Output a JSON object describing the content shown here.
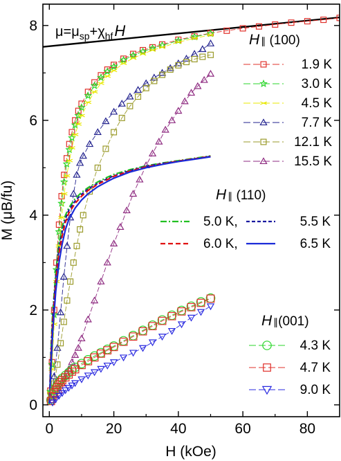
{
  "chart_data": {
    "type": "scatter",
    "xlabel": "H (kOe)",
    "ylabel": "M (μB/fu)",
    "xlim": [
      -2,
      90
    ],
    "ylim": [
      -0.25,
      8.45
    ],
    "xticks": [
      "0",
      "20",
      "40",
      "60",
      "80"
    ],
    "xtick_values": [
      0,
      20,
      40,
      60,
      80
    ],
    "yticks": [
      "0",
      "2",
      "4",
      "6",
      "8"
    ],
    "ytick_values": [
      0,
      2,
      4,
      6,
      8
    ],
    "annotation": {
      "prefix": "μ=μ",
      "sub1": "sp",
      "mid": "+χ",
      "sub2": "hf",
      "suffix": "H"
    },
    "fit_line": {
      "name": "μ=μsp+χhf H",
      "x": [
        -2,
        90
      ],
      "y": [
        7.55,
        8.17
      ],
      "color": "#000000"
    },
    "groups": [
      {
        "header_h": "H",
        "header_sym": "∥",
        "header_dir": " (100)",
        "series": [
          {
            "name": "1.9 K",
            "marker": "square",
            "color": "#e0302a",
            "dash": "long",
            "x": [
              0.3,
              0.8,
              1.5,
              2.2,
              3,
              3.8,
              4.6,
              5.4,
              6.2,
              7,
              8,
              9,
              10,
              12,
              14,
              16,
              18,
              20,
              23,
              26,
              29,
              32,
              35,
              40,
              45,
              50,
              55,
              60,
              65,
              70,
              75,
              80,
              85,
              90
            ],
            "y": [
              0.3,
              0.9,
              2.0,
              3.0,
              3.8,
              4.4,
              4.85,
              5.2,
              5.5,
              5.75,
              6.0,
              6.2,
              6.35,
              6.6,
              6.8,
              6.95,
              7.07,
              7.17,
              7.3,
              7.4,
              7.48,
              7.54,
              7.6,
              7.7,
              7.77,
              7.84,
              7.89,
              7.94,
              7.98,
              8.02,
              8.06,
              8.09,
              8.12,
              8.16
            ]
          },
          {
            "name": "3.0 K",
            "marker": "star",
            "color": "#2ad62a",
            "dash": "long",
            "x": [
              0.3,
              0.8,
              1.5,
              2.2,
              3,
              3.8,
              4.6,
              5.4,
              6.2,
              7,
              8,
              9,
              10,
              12,
              14,
              16,
              18,
              20,
              23,
              26,
              29,
              32,
              35,
              40,
              45,
              50
            ],
            "y": [
              0.28,
              0.85,
              1.9,
              2.85,
              3.65,
              4.25,
              4.7,
              5.08,
              5.38,
              5.63,
              5.9,
              6.1,
              6.27,
              6.52,
              6.73,
              6.9,
              7.03,
              7.13,
              7.27,
              7.37,
              7.45,
              7.52,
              7.58,
              7.68,
              7.76,
              7.83
            ]
          },
          {
            "name": "4.5 K",
            "marker": "cross",
            "color": "#e8e800",
            "dash": "long",
            "x": [
              0.3,
              0.8,
              1.5,
              2.2,
              3,
              3.8,
              4.6,
              5.4,
              6.2,
              7,
              8,
              9,
              10,
              12,
              14,
              16,
              18,
              20,
              23,
              26,
              29,
              32,
              35,
              40,
              45,
              50
            ],
            "y": [
              0.25,
              0.75,
              1.7,
              2.6,
              3.35,
              3.95,
              4.45,
              4.83,
              5.15,
              5.42,
              5.7,
              5.92,
              6.1,
              6.38,
              6.6,
              6.78,
              6.93,
              7.05,
              7.2,
              7.31,
              7.4,
              7.48,
              7.54,
              7.65,
              7.73,
              7.8
            ]
          },
          {
            "name": "7.7 K",
            "marker": "triangle-up",
            "color": "#22228e",
            "dash": "long",
            "x": [
              0.5,
              1.5,
              2.5,
              3.5,
              4.5,
              5.5,
              6.5,
              7.5,
              8.5,
              9.5,
              10.5,
              12.5,
              15,
              17.5,
              20,
              22.5,
              25,
              27.5,
              30,
              32.5,
              35,
              37.5,
              40,
              42.5,
              45,
              47.5,
              50
            ],
            "y": [
              0.15,
              0.6,
              1.2,
              1.95,
              2.7,
              3.35,
              3.95,
              4.45,
              4.85,
              5.1,
              5.25,
              5.5,
              5.75,
              5.98,
              6.18,
              6.35,
              6.5,
              6.64,
              6.78,
              6.9,
              7.0,
              7.1,
              7.2,
              7.3,
              7.4,
              7.5,
              7.62
            ]
          },
          {
            "name": "12.1 K",
            "marker": "square",
            "color": "#9a9a2a",
            "dash": "long",
            "x": [
              0.5,
              1.5,
              2.5,
              3.5,
              4.5,
              5.5,
              6.5,
              7.5,
              8.5,
              9.5,
              10.5,
              12.5,
              15,
              17.5,
              20,
              22.5,
              25,
              27.5,
              30,
              32.5,
              35,
              37.5,
              40,
              42.5,
              45,
              47.5,
              50
            ],
            "y": [
              0.1,
              0.45,
              0.85,
              1.3,
              1.75,
              2.2,
              2.6,
              3.0,
              3.35,
              3.7,
              4.0,
              4.5,
              5.0,
              5.4,
              5.75,
              6.05,
              6.3,
              6.5,
              6.68,
              6.83,
              6.96,
              7.07,
              7.16,
              7.23,
              7.29,
              7.34,
              7.38
            ]
          },
          {
            "name": "15.5 K",
            "marker": "triangle-up",
            "color": "#8e2a80",
            "dash": "long",
            "x": [
              1,
              2,
              3,
              4,
              5,
              6,
              7,
              8,
              9,
              10,
              12,
              14,
              16,
              18,
              20,
              22,
              24,
              26,
              28,
              30,
              32,
              34,
              36,
              38,
              40,
              42,
              44,
              46,
              48,
              50
            ],
            "y": [
              0.1,
              0.2,
              0.3,
              0.45,
              0.6,
              0.75,
              0.9,
              1.05,
              1.2,
              1.4,
              1.8,
              2.2,
              2.6,
              3.0,
              3.4,
              3.75,
              4.1,
              4.45,
              4.75,
              5.05,
              5.3,
              5.55,
              5.8,
              6.0,
              6.2,
              6.4,
              6.58,
              6.72,
              6.85,
              6.98
            ]
          }
        ]
      },
      {
        "header_h": "H",
        "header_sym": "∥",
        "header_dir": " (110)",
        "series": [
          {
            "name": "5.0 K,",
            "style": "line",
            "color": "#22c022",
            "dash": "dashdot",
            "x": [
              0,
              0.5,
              1,
              2,
              3,
              4,
              5,
              6,
              8,
              10,
              12,
              15,
              18,
              20,
              25,
              30,
              35,
              40,
              45,
              50
            ],
            "y": [
              0,
              1.2,
              1.9,
              2.8,
              3.4,
              3.75,
              4.0,
              4.15,
              4.35,
              4.48,
              4.58,
              4.7,
              4.8,
              4.86,
              4.96,
              5.04,
              5.1,
              5.15,
              5.2,
              5.25
            ]
          },
          {
            "name": "5.5 K",
            "style": "line",
            "color": "#1a1aa0",
            "dash": "short",
            "x": [
              0,
              0.5,
              1,
              2,
              3,
              4,
              5,
              6,
              8,
              10,
              12,
              15,
              18,
              20,
              25,
              30,
              35,
              40,
              45,
              50
            ],
            "y": [
              0,
              1.1,
              1.8,
              2.7,
              3.3,
              3.65,
              3.92,
              4.1,
              4.3,
              4.44,
              4.55,
              4.67,
              4.77,
              4.83,
              4.94,
              5.03,
              5.09,
              5.14,
              5.19,
              5.24
            ]
          },
          {
            "name": "6.0 K,",
            "style": "line",
            "color": "#e01010",
            "dash": "medium",
            "x": [
              0,
              0.5,
              1,
              2,
              3,
              4,
              5,
              6,
              8,
              10,
              12,
              15,
              18,
              20,
              25,
              30,
              35,
              40,
              45,
              50
            ],
            "y": [
              0,
              1.0,
              1.7,
              2.6,
              3.2,
              3.57,
              3.85,
              4.04,
              4.25,
              4.4,
              4.52,
              4.65,
              4.75,
              4.82,
              4.93,
              5.02,
              5.08,
              5.14,
              5.19,
              5.24
            ]
          },
          {
            "name": "6.5 K",
            "style": "line",
            "color": "#1a2ad8",
            "dash": "solid",
            "x": [
              0,
              0.5,
              1,
              2,
              3,
              4,
              5,
              6,
              8,
              10,
              12,
              15,
              18,
              20,
              25,
              30,
              35,
              40,
              45,
              50
            ],
            "y": [
              0,
              0.8,
              1.5,
              2.4,
              3.0,
              3.4,
              3.7,
              3.9,
              4.15,
              4.32,
              4.45,
              4.6,
              4.71,
              4.78,
              4.91,
              5.0,
              5.07,
              5.13,
              5.18,
              5.23
            ]
          }
        ]
      },
      {
        "header_h": "H",
        "header_sym": "∥",
        "header_dir": "(001)",
        "series": [
          {
            "name": "4.3 K",
            "marker": "circle",
            "color": "#2ad62a",
            "dash": "long",
            "big": true,
            "x": [
              0.5,
              1,
              1.5,
              2,
              2.5,
              3,
              3.5,
              4,
              5,
              6,
              7,
              8,
              10,
              12,
              14,
              16,
              18,
              20,
              23,
              26,
              29,
              32,
              35,
              38,
              41,
              44,
              47,
              50
            ],
            "y": [
              0.1,
              0.22,
              0.3,
              0.36,
              0.42,
              0.47,
              0.52,
              0.56,
              0.62,
              0.68,
              0.74,
              0.79,
              0.87,
              0.95,
              1.03,
              1.1,
              1.17,
              1.24,
              1.35,
              1.46,
              1.57,
              1.68,
              1.79,
              1.89,
              1.99,
              2.08,
              2.17,
              2.25
            ]
          },
          {
            "name": "4.7 K",
            "marker": "square",
            "color": "#e0302a",
            "dash": "long",
            "big": true,
            "x": [
              0.5,
              1,
              1.5,
              2,
              2.5,
              3,
              3.5,
              4,
              5,
              6,
              7,
              8,
              10,
              12,
              14,
              16,
              18,
              20,
              23,
              26,
              29,
              32,
              35,
              38,
              41,
              44,
              47,
              50
            ],
            "y": [
              0.08,
              0.18,
              0.26,
              0.32,
              0.38,
              0.43,
              0.48,
              0.52,
              0.58,
              0.64,
              0.7,
              0.75,
              0.84,
              0.92,
              1.0,
              1.08,
              1.15,
              1.22,
              1.33,
              1.44,
              1.55,
              1.66,
              1.77,
              1.87,
              1.97,
              2.06,
              2.15,
              2.24
            ]
          },
          {
            "name": "9.0 K",
            "marker": "triangle-down",
            "color": "#2a2ae0",
            "dash": "long",
            "x": [
              1,
              2,
              3,
              4,
              5,
              6,
              7,
              8,
              10,
              12,
              14,
              16,
              18,
              20,
              23,
              26,
              29,
              32,
              35,
              38,
              41,
              44,
              47,
              50
            ],
            "y": [
              0.05,
              0.12,
              0.19,
              0.25,
              0.31,
              0.36,
              0.41,
              0.46,
              0.54,
              0.62,
              0.69,
              0.76,
              0.83,
              0.9,
              1.0,
              1.1,
              1.2,
              1.32,
              1.44,
              1.56,
              1.7,
              1.84,
              1.96,
              2.08
            ]
          }
        ]
      }
    ]
  }
}
